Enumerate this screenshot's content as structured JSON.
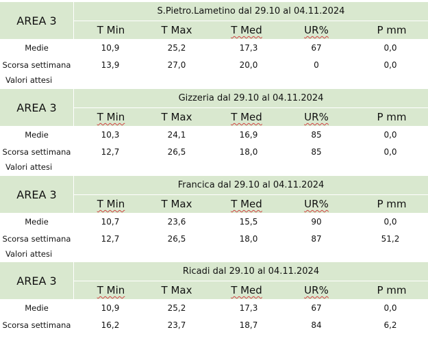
{
  "columns": [
    "T Min",
    "T Max",
    "T Med",
    "UR%",
    "P mm"
  ],
  "blocks": [
    {
      "area": "AREA 3",
      "title": "S.Pietro.Lametino dal 29.10 al 04.11.2024",
      "rows": [
        {
          "label": "Medie",
          "values": [
            "10,9",
            "25,2",
            "17,3",
            "67",
            "0,0"
          ]
        },
        {
          "label": "Scorsa settimana",
          "values": [
            "13,9",
            "27,0",
            "20,0",
            "0",
            "0,0"
          ]
        },
        {
          "label": "Valori attesi",
          "values": []
        }
      ]
    },
    {
      "area": "AREA 3",
      "title": "Gizzeria dal 29.10 al 04.11.2024",
      "rows": [
        {
          "label": "Medie",
          "values": [
            "10,3",
            "24,1",
            "16,9",
            "85",
            "0,0"
          ]
        },
        {
          "label": "Scorsa settimana",
          "values": [
            "12,7",
            "26,5",
            "18,0",
            "85",
            "0,0"
          ]
        },
        {
          "label": "Valori attesi",
          "values": []
        }
      ]
    },
    {
      "area": "AREA 3",
      "title": "Francica dal 29.10 al 04.11.2024",
      "rows": [
        {
          "label": "Medie",
          "values": [
            "10,7",
            "23,6",
            "15,5",
            "90",
            "0,0"
          ]
        },
        {
          "label": "Scorsa settimana",
          "values": [
            "12,7",
            "26,5",
            "18,0",
            "87",
            "51,2"
          ]
        },
        {
          "label": "Valori attesi",
          "values": []
        }
      ]
    },
    {
      "area": "AREA 3",
      "title": "Ricadi  dal 29.10 al 04.11.2024",
      "rows": [
        {
          "label": "Medie",
          "values": [
            "10,9",
            "25,2",
            "17,3",
            "67",
            "0,0"
          ]
        },
        {
          "label": "Scorsa settimana",
          "values": [
            "16,2",
            "23,7",
            "18,7",
            "84",
            "6,2"
          ]
        }
      ]
    }
  ],
  "colors": {
    "header_bg": "#d9e8cf",
    "spellcheck_underline": "#d04040"
  }
}
